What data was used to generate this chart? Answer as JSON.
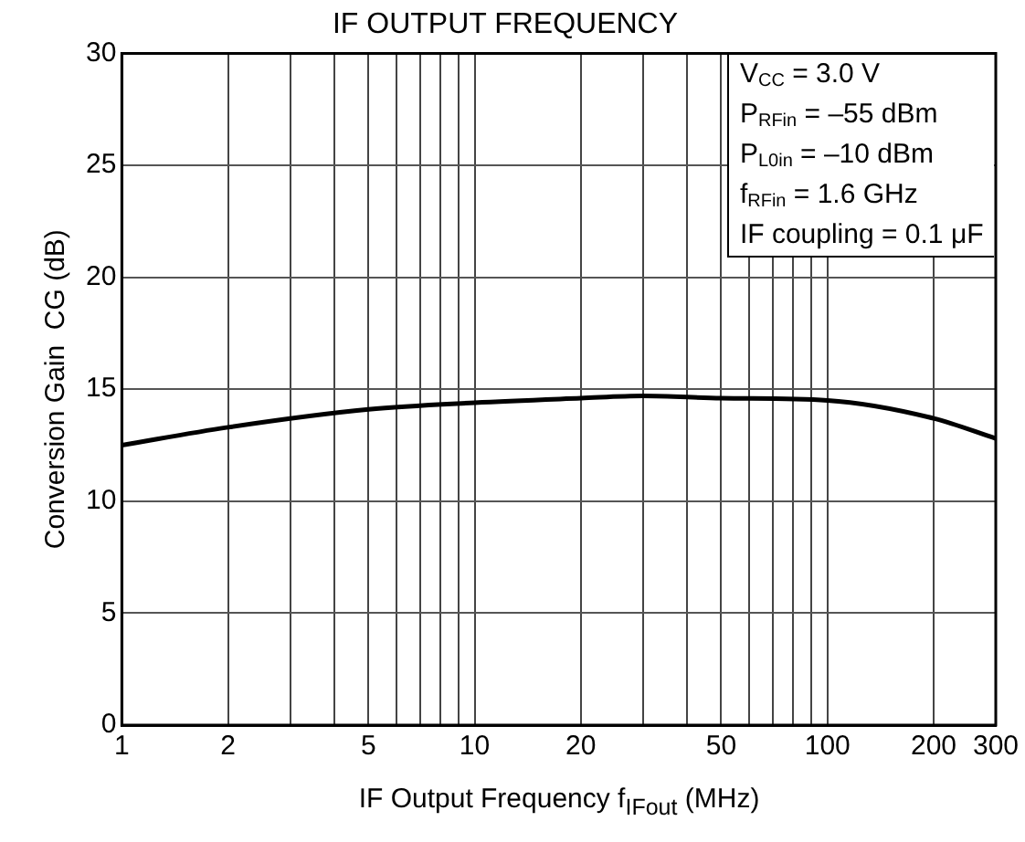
{
  "chart_data": {
    "type": "line",
    "title": "IF OUTPUT FREQUENCY",
    "xlabel": "IF Output Frequency  f$_{IFout}$ (MHz)",
    "ylabel": "Conversion Gain  CG (dB)",
    "annotations": [
      "V$_{CC}$ = 3.0 V",
      "P$_{RFin}$ = –55 dBm",
      "P$_{L0in}$ = –10 dBm",
      "f$_{RFin}$ = 1.6 GHz",
      "IF coupling = 0.1 μF"
    ],
    "series": [
      {
        "color": "#000000",
        "x": [
          1,
          2,
          5,
          10,
          20,
          30,
          50,
          100,
          200,
          300
        ],
        "values": [
          12.5,
          13.3,
          14.1,
          14.4,
          14.6,
          14.7,
          14.6,
          14.5,
          13.7,
          12.8
        ]
      }
    ],
    "log": "x",
    "grid": true,
    "legend": false,
    "marker": "none",
    "line_style": "solid",
    "xlim": [
      1,
      300
    ],
    "ylim": [
      0,
      30
    ],
    "xticks": [
      1,
      2,
      {
        "value": 3,
        "label": null
      },
      {
        "value": 4,
        "label": null
      },
      5,
      {
        "value": 6,
        "label": null
      },
      {
        "value": 7,
        "label": null
      },
      {
        "value": 8,
        "label": null
      },
      {
        "value": 9,
        "label": null
      },
      10,
      20,
      {
        "value": 30,
        "label": null
      },
      {
        "value": 40,
        "label": null
      },
      50,
      {
        "value": 60,
        "label": null
      },
      {
        "value": 70,
        "label": null
      },
      {
        "value": 80,
        "label": null
      },
      {
        "value": 90,
        "label": null
      },
      100,
      200,
      300
    ],
    "yticks": [
      0,
      5,
      10,
      15,
      20,
      25,
      30
    ]
  }
}
